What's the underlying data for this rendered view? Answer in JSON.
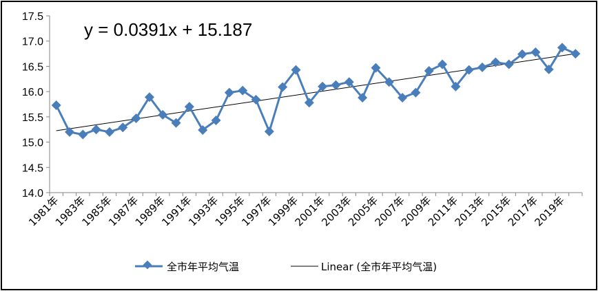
{
  "chart_data": {
    "type": "line",
    "series": [
      {
        "name": "全市年平均气温",
        "color": "#4a7ebb",
        "marker": "diamond",
        "x": [
          1981,
          1982,
          1983,
          1984,
          1985,
          1986,
          1987,
          1988,
          1989,
          1990,
          1991,
          1992,
          1993,
          1994,
          1995,
          1996,
          1997,
          1998,
          1999,
          2000,
          2001,
          2002,
          2003,
          2004,
          2005,
          2006,
          2007,
          2008,
          2009,
          2010,
          2011,
          2012,
          2013,
          2014,
          2015,
          2016,
          2017,
          2018,
          2019,
          2020
        ],
        "values": [
          15.73,
          15.2,
          15.15,
          15.25,
          15.2,
          15.29,
          15.47,
          15.89,
          15.54,
          15.38,
          15.7,
          15.24,
          15.43,
          15.98,
          16.02,
          15.84,
          15.21,
          16.09,
          16.43,
          15.78,
          16.1,
          16.13,
          16.19,
          15.88,
          16.47,
          16.19,
          15.88,
          15.98,
          16.41,
          16.54,
          16.1,
          16.43,
          16.48,
          16.58,
          16.54,
          16.74,
          16.78,
          16.44,
          16.87,
          16.75
        ]
      }
    ],
    "trendline": {
      "name": "Linear (全市年平均气温)",
      "slope": 0.0391,
      "intercept": 15.187,
      "color": "#000000"
    },
    "equation": "y = 0.0391x + 15.187",
    "xtick_labels": [
      "1981年",
      "1983年",
      "1985年",
      "1987年",
      "1989年",
      "1991年",
      "1993年",
      "1995年",
      "1997年",
      "1999年",
      "2001年",
      "2003年",
      "2005年",
      "2007年",
      "2009年",
      "2011年",
      "2013年",
      "2015年",
      "2017年",
      "2019年"
    ],
    "ytick_labels": [
      "14.0",
      "14.5",
      "15.0",
      "15.5",
      "16.0",
      "16.5",
      "17.0",
      "17.5"
    ],
    "ylim": [
      14.0,
      17.5
    ],
    "grid": false,
    "legend_position": "bottom"
  }
}
